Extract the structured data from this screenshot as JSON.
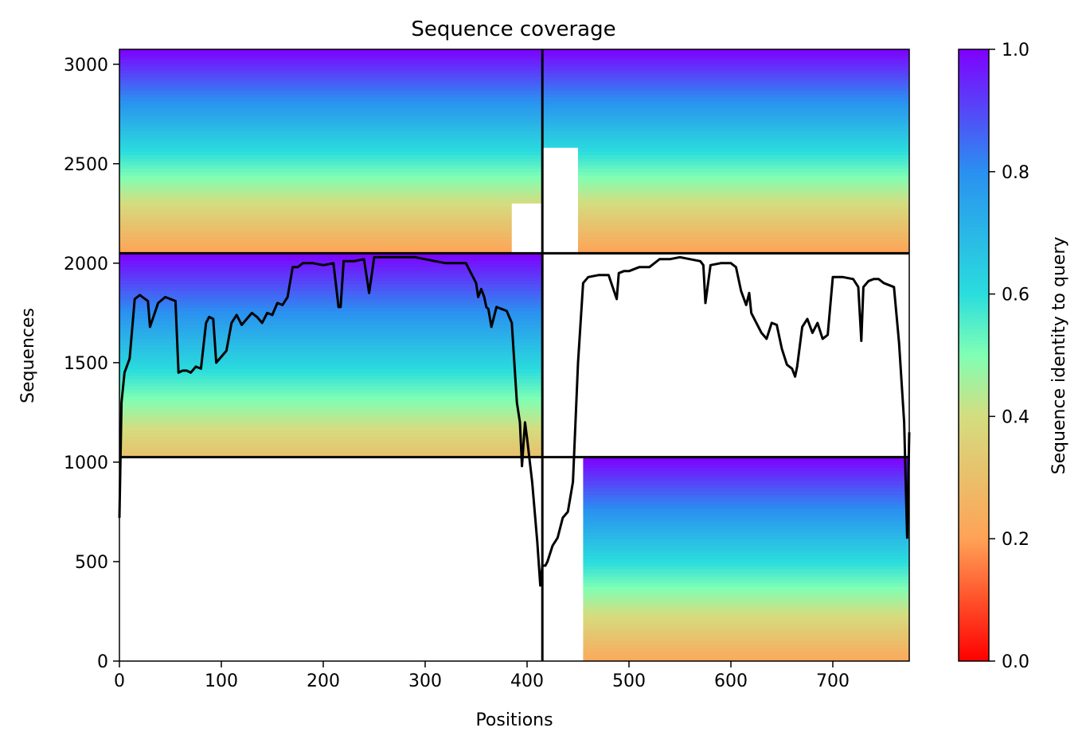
{
  "chart_data": {
    "type": "heatmap",
    "title": "Sequence coverage",
    "xlabel": "Positions",
    "ylabel": "Sequences",
    "colorbar_label": "Sequence identity to query",
    "colormap": "rainbow_r",
    "xlim": [
      0,
      775
    ],
    "ylim": [
      0,
      3075
    ],
    "x_ticks": [
      {
        "value": 0,
        "label": "0"
      },
      {
        "value": 100,
        "label": "100"
      },
      {
        "value": 200,
        "label": "200"
      },
      {
        "value": 300,
        "label": "300"
      },
      {
        "value": 400,
        "label": "400"
      },
      {
        "value": 500,
        "label": "500"
      },
      {
        "value": 600,
        "label": "600"
      },
      {
        "value": 700,
        "label": "700"
      }
    ],
    "y_ticks": [
      {
        "value": 0,
        "label": "0"
      },
      {
        "value": 500,
        "label": "500"
      },
      {
        "value": 1000,
        "label": "1000"
      },
      {
        "value": 1500,
        "label": "1500"
      },
      {
        "value": 2000,
        "label": "2000"
      },
      {
        "value": 2500,
        "label": "2500"
      },
      {
        "value": 3000,
        "label": "3000"
      }
    ],
    "colorbar_ticks": [
      {
        "value": 0.0,
        "label": "0.0"
      },
      {
        "value": 0.2,
        "label": "0.2"
      },
      {
        "value": 0.4,
        "label": "0.4"
      },
      {
        "value": 0.6,
        "label": "0.6"
      },
      {
        "value": 0.8,
        "label": "0.8"
      },
      {
        "value": 1.0,
        "label": "1.0"
      }
    ],
    "chain_boundary_x": 415,
    "blocks": [
      {
        "x0": 0,
        "x1": 775,
        "y0": 2050,
        "y1": 3075,
        "id_bottom": 0.2,
        "id_top": 1.0,
        "missing": [
          {
            "x0": 385,
            "x1": 415,
            "y0": 2050,
            "y1": 2300
          },
          {
            "x0": 415,
            "x1": 450,
            "y0": 2050,
            "y1": 2580
          }
        ]
      },
      {
        "x0": 0,
        "x1": 415,
        "y0": 1025,
        "y1": 2050,
        "id_bottom": 0.3,
        "id_top": 1.0,
        "missing": []
      },
      {
        "x0": 415,
        "x1": 775,
        "y0": 0,
        "y1": 1025,
        "id_bottom": 0.22,
        "id_top": 1.0,
        "missing": [
          {
            "x0": 415,
            "x1": 455,
            "y0": 0,
            "y1": 1025
          }
        ]
      }
    ],
    "separators": {
      "horizontal": [
        1025,
        2050
      ],
      "vertical": [
        415
      ]
    },
    "coverage_line": {
      "x": [
        0,
        2,
        5,
        10,
        15,
        20,
        28,
        30,
        38,
        45,
        55,
        58,
        62,
        66,
        70,
        75,
        80,
        85,
        88,
        92,
        95,
        100,
        105,
        110,
        115,
        120,
        125,
        130,
        135,
        140,
        145,
        150,
        155,
        160,
        165,
        170,
        175,
        180,
        190,
        200,
        210,
        215,
        217,
        220,
        230,
        240,
        245,
        250,
        255,
        260,
        270,
        280,
        290,
        300,
        310,
        320,
        330,
        340,
        350,
        352,
        355,
        358,
        360,
        362,
        365,
        370,
        375,
        380,
        385,
        390,
        393,
        395,
        398,
        400,
        405,
        410,
        413,
        415,
        418,
        420,
        425,
        430,
        435,
        440,
        445,
        450,
        455,
        460,
        470,
        480,
        488,
        490,
        495,
        500,
        510,
        520,
        525,
        530,
        540,
        550,
        560,
        570,
        573,
        575,
        580,
        590,
        600,
        605,
        610,
        615,
        618,
        620,
        625,
        630,
        635,
        640,
        645,
        650,
        655,
        660,
        663,
        665,
        670,
        675,
        680,
        685,
        690,
        695,
        700,
        710,
        720,
        725,
        728,
        730,
        735,
        740,
        745,
        750,
        760,
        765,
        770,
        773,
        775
      ],
      "y": [
        720,
        1300,
        1450,
        1520,
        1820,
        1840,
        1810,
        1680,
        1800,
        1830,
        1810,
        1450,
        1460,
        1460,
        1450,
        1480,
        1470,
        1700,
        1730,
        1720,
        1500,
        1530,
        1560,
        1700,
        1740,
        1690,
        1720,
        1750,
        1730,
        1700,
        1750,
        1740,
        1800,
        1790,
        1830,
        1980,
        1980,
        2000,
        2000,
        1990,
        2000,
        1780,
        1780,
        2010,
        2010,
        2020,
        1850,
        2030,
        2030,
        2030,
        2030,
        2030,
        2030,
        2020,
        2010,
        2000,
        2000,
        2000,
        1900,
        1830,
        1870,
        1830,
        1780,
        1770,
        1680,
        1780,
        1770,
        1760,
        1700,
        1300,
        1200,
        980,
        1200,
        1120,
        900,
        600,
        380,
        480,
        480,
        500,
        580,
        620,
        720,
        750,
        900,
        1500,
        1900,
        1930,
        1940,
        1940,
        1820,
        1950,
        1960,
        1960,
        1980,
        1980,
        2000,
        2020,
        2020,
        2030,
        2020,
        2010,
        1990,
        1800,
        1990,
        2000,
        2000,
        1980,
        1860,
        1790,
        1850,
        1750,
        1700,
        1650,
        1620,
        1700,
        1690,
        1570,
        1490,
        1470,
        1430,
        1480,
        1680,
        1720,
        1650,
        1700,
        1620,
        1640,
        1930,
        1930,
        1920,
        1880,
        1610,
        1880,
        1910,
        1920,
        1920,
        1900,
        1880,
        1600,
        1200,
        620,
        1150
      ]
    }
  }
}
